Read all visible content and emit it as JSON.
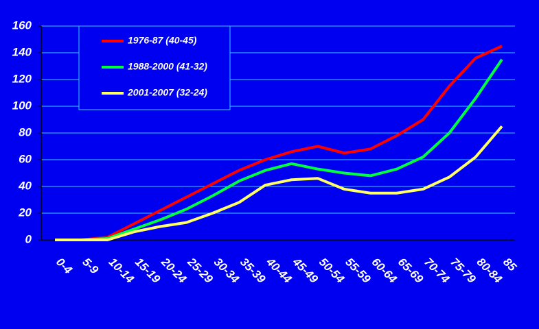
{
  "chart_data": {
    "type": "line",
    "categories": [
      "0-4",
      "5-9",
      "10-14",
      "15-19",
      "20-24",
      "25-29",
      "30-34",
      "35-39",
      "40-44",
      "45-49",
      "50-54",
      "55-59",
      "60-64",
      "65-69",
      "70-74",
      "75-79",
      "80-84",
      "85"
    ],
    "series": [
      {
        "name": "1976-87 (40-45)",
        "color": "#ff0000",
        "values": [
          0,
          0,
          2,
          12,
          22,
          32,
          42,
          52,
          60,
          66,
          70,
          65,
          68,
          78,
          90,
          115,
          136,
          145
        ]
      },
      {
        "name": "1988-2000 (41-32)",
        "color": "#00ff40",
        "values": [
          0,
          0,
          1,
          8,
          15,
          23,
          33,
          44,
          52,
          57,
          53,
          50,
          48,
          53,
          62,
          80,
          106,
          135
        ]
      },
      {
        "name": "2001-2007 (32-24)",
        "color": "#ffff66",
        "values": [
          0,
          0,
          0,
          6,
          10,
          13,
          20,
          28,
          41,
          45,
          46,
          38,
          35,
          35,
          38,
          47,
          62,
          85
        ]
      }
    ],
    "ylim": [
      0,
      160
    ],
    "yticks": [
      0,
      20,
      40,
      60,
      80,
      100,
      120,
      140,
      160
    ],
    "grid": true
  }
}
